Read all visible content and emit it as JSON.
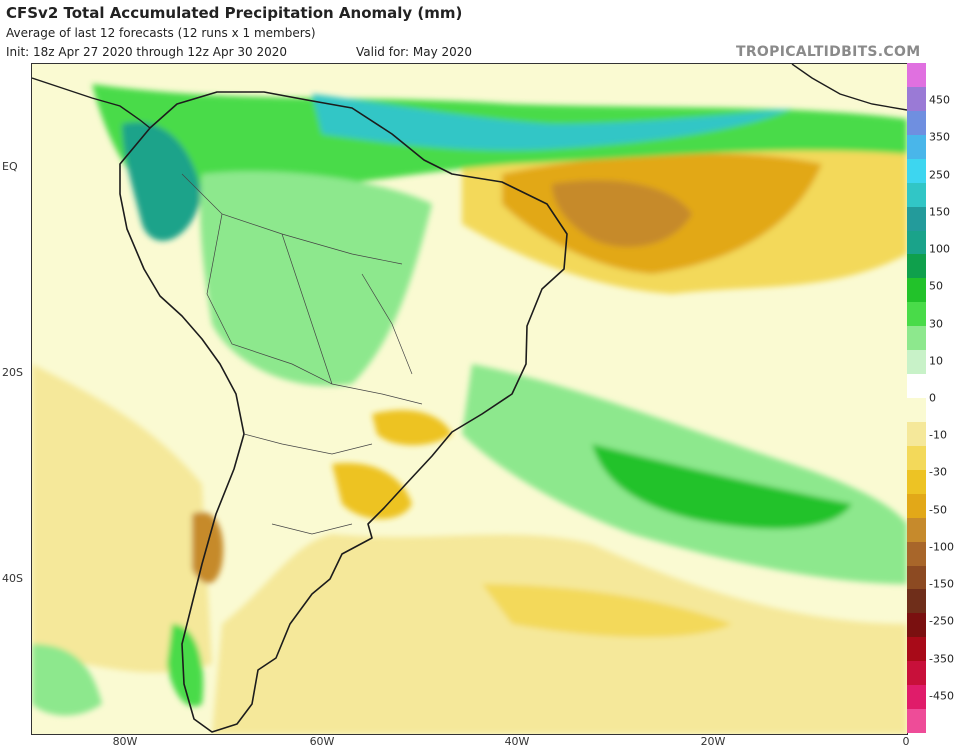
{
  "header": {
    "title": "CFSv2 Total Accumulated Precipitation Anomaly (mm)",
    "subtitle": "Average of last 12 forecasts (12 runs x 1 members)",
    "init": "Init: 18z Apr 27 2020 through 12z Apr 30 2020",
    "valid": "Valid for: May 2020",
    "brand": "TROPICALTIDBITS.COM"
  },
  "axes": {
    "lat_labels": [
      "EQ",
      "20S",
      "40S"
    ],
    "lon_labels": [
      "80W",
      "60W",
      "40W",
      "20W",
      "0"
    ]
  },
  "colorbar": {
    "labels": [
      "450",
      "350",
      "250",
      "150",
      "100",
      "50",
      "30",
      "10",
      "0",
      "-10",
      "-30",
      "-50",
      "-100",
      "-150",
      "-250",
      "-350",
      "-450"
    ],
    "colors": [
      "#e070e0",
      "#9a7ad6",
      "#6f8fe0",
      "#49b6ea",
      "#3dd6f0",
      "#31c6c6",
      "#239b9b",
      "#1aa38a",
      "#0fa04c",
      "#22c22a",
      "#49db49",
      "#8de88d",
      "#c8f2c8",
      "#ffffff",
      "#fafad2",
      "#f5e89a",
      "#f3d95a",
      "#edc324",
      "#e2a818",
      "#c68a2c",
      "#a8662a",
      "#8c4a22",
      "#6f2e1a",
      "#7a1010",
      "#a80a18",
      "#c8103a",
      "#e01c6a",
      "#ee4c98"
    ]
  },
  "map_colors": {
    "wet1": "#8de88d",
    "wet2": "#49db49",
    "wet3": "#22c22a",
    "wet4": "#1aa38a",
    "wet5": "#31c6c6",
    "dry1": "#fafad2",
    "dry2": "#f5e89a",
    "dry3": "#f3d95a",
    "dry4": "#edc324",
    "dry5": "#e2a818",
    "dry6": "#c68a2c",
    "dry7": "#a8662a"
  }
}
